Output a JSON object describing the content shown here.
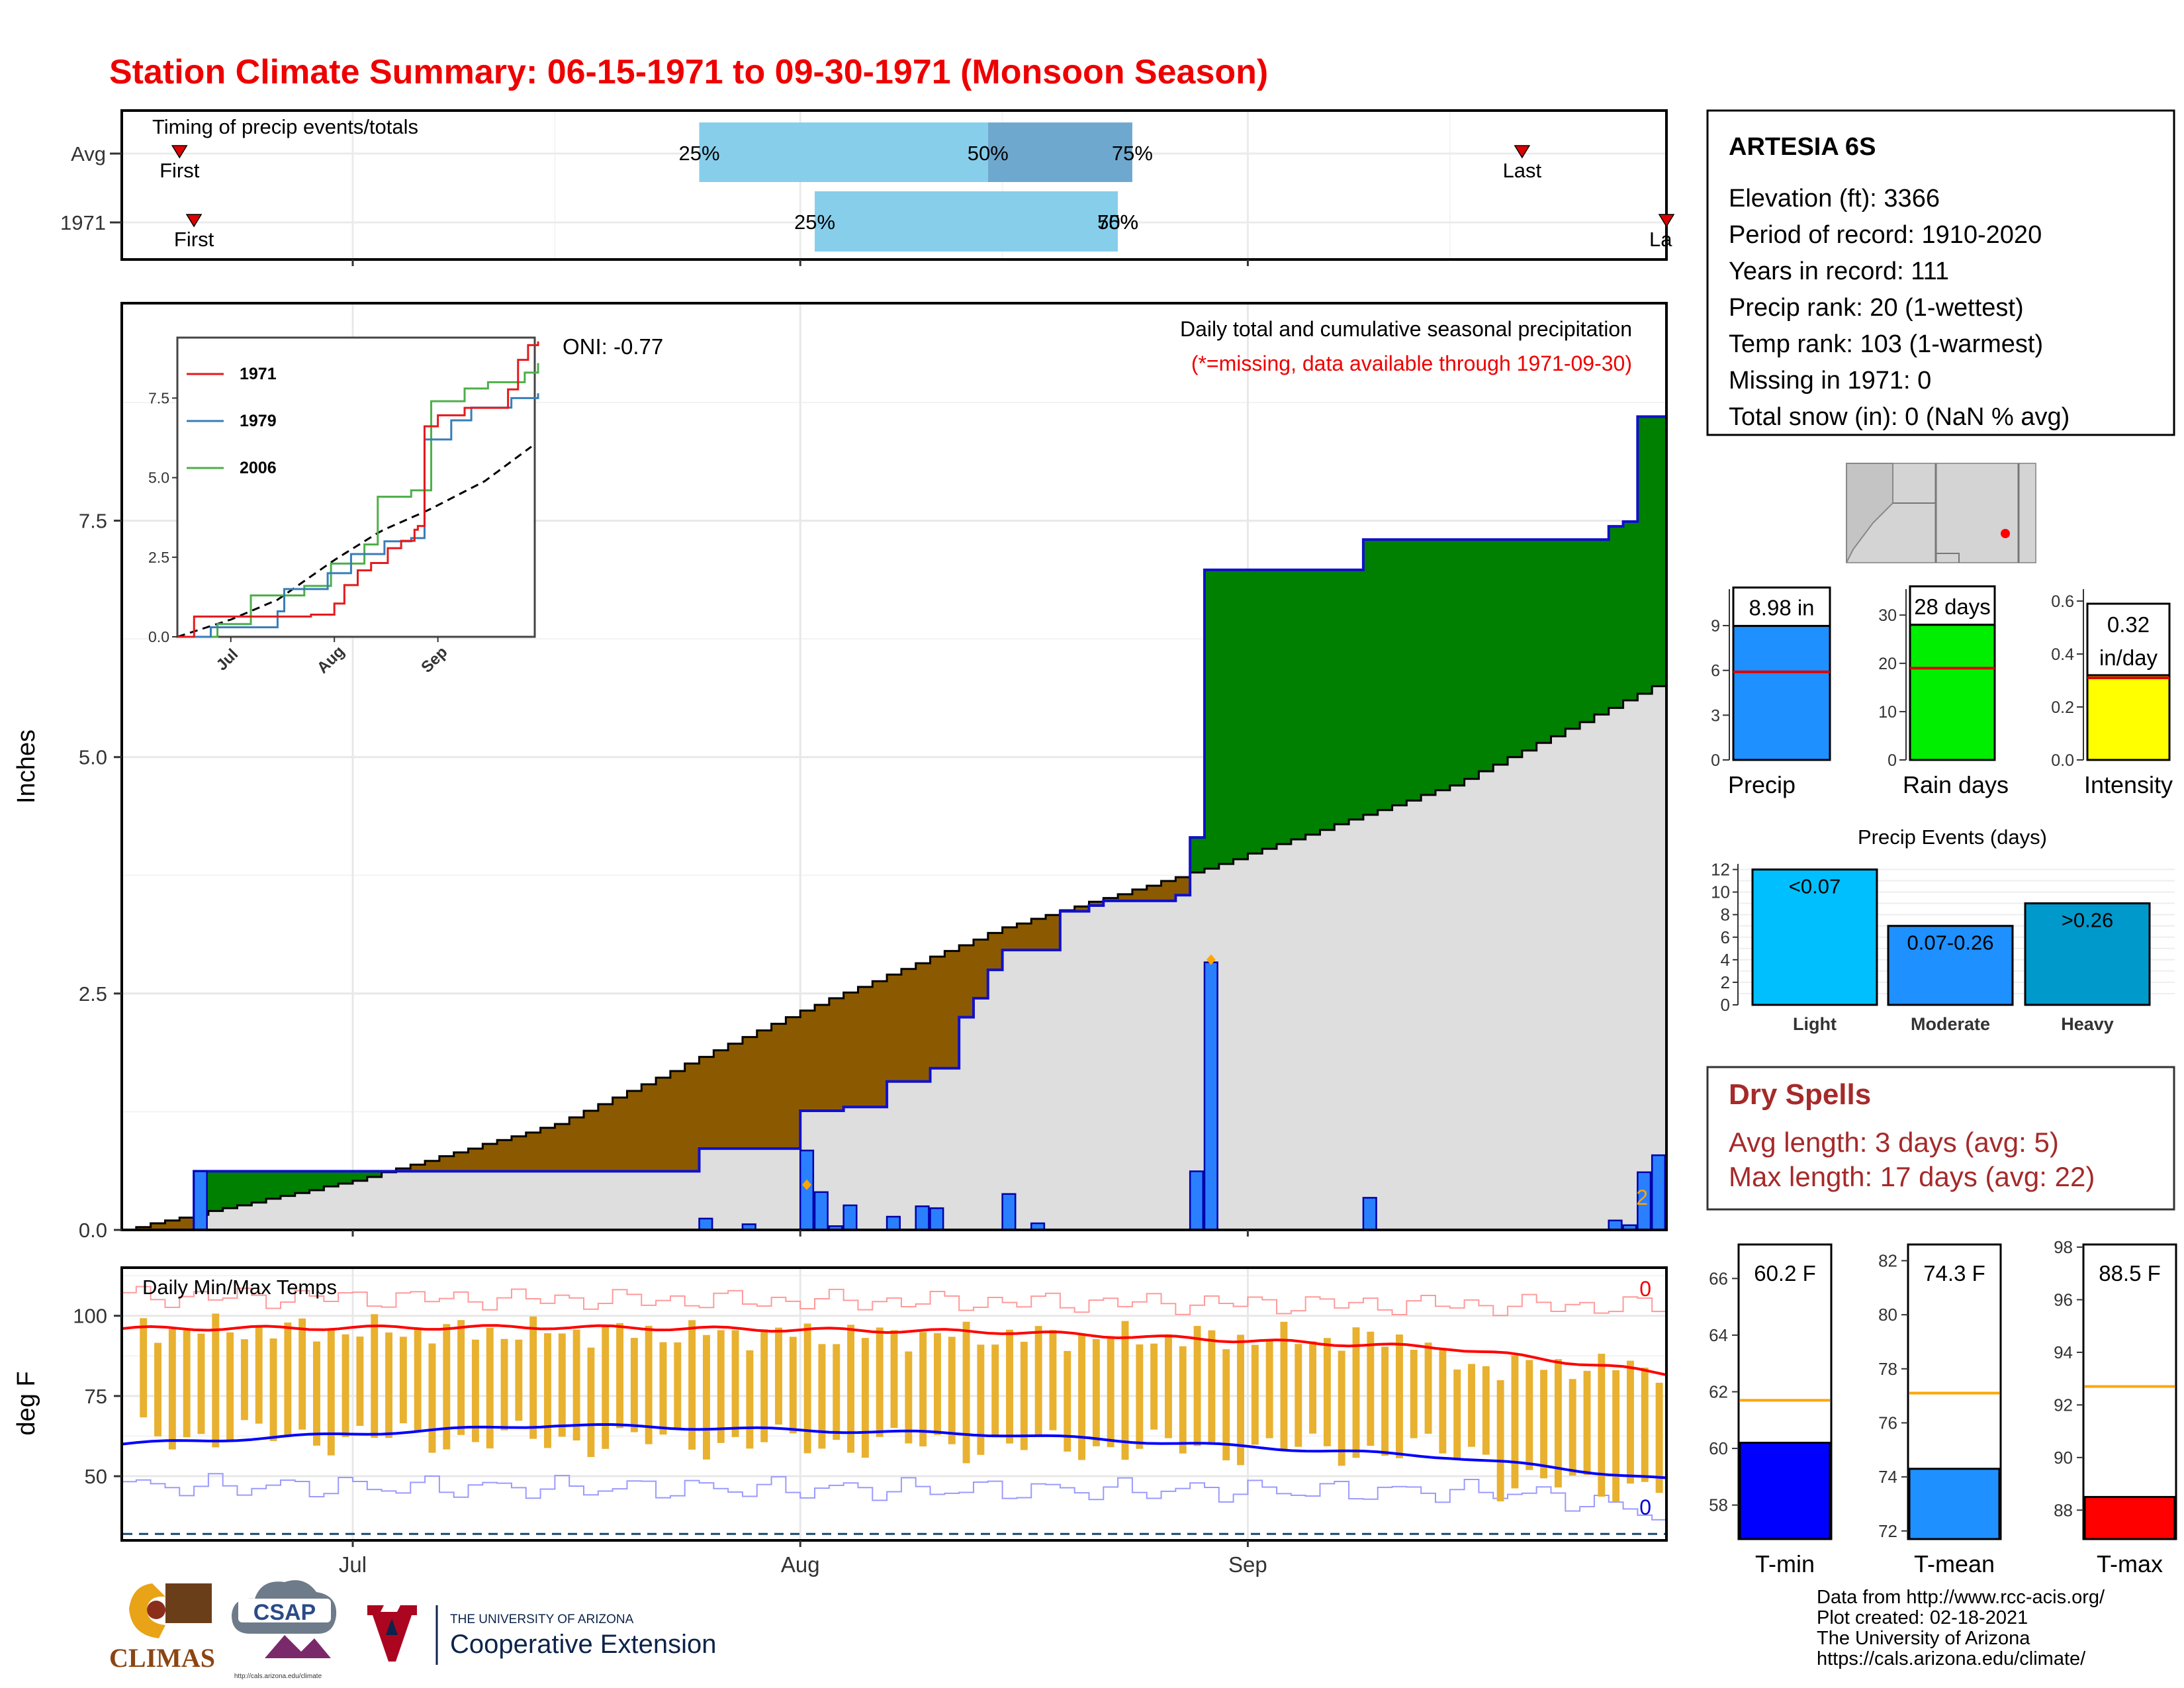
{
  "title": "Station Climate Summary: 06-15-1971 to 09-30-1971 (Monsoon Season)",
  "station": {
    "name": "ARTESIA 6S",
    "lines": [
      "Elevation (ft): 3366",
      "Period of record: 1910-2020",
      "Years in record: 111",
      "Precip rank: 20 (1-wettest)",
      "Temp rank: 103 (1-warmest)",
      "Missing in 1971: 0",
      "Total snow (in): 0 (NaN % avg)"
    ]
  },
  "timing": {
    "label": "Timing of precip events/totals",
    "rows": [
      "Avg",
      "1971"
    ],
    "first_label": "First",
    "last_label": "Last",
    "last_label_clipped": "La",
    "pct": [
      "25%",
      "50%",
      "75%"
    ],
    "avg": {
      "first": "1971-06-19",
      "q25": "1971-07-25",
      "q50": "1971-08-14",
      "q75": "1971-08-24",
      "last": "1971-09-20"
    },
    "y1971": {
      "first": "1971-06-20",
      "q25": "1971-08-02",
      "q50": "1971-08-23",
      "q75": "1971-08-23",
      "last": "1971-09-30"
    },
    "colors": {
      "light": "#87ceeb",
      "dark": "#6fa8cf",
      "marker": "#dd0000"
    }
  },
  "main": {
    "ylabel": "Inches",
    "legend_title": "Daily total and cumulative seasonal precipitation",
    "legend_sub": "(*=missing, data available through 1971-09-30)",
    "oni": "ONI: -0.77",
    "count_note": "2",
    "yticks": [
      "0.0",
      "2.5",
      "5.0",
      "7.5"
    ],
    "colors": {
      "surplus": "#008000",
      "deficit": "#8b5a00",
      "normal": "#dedede",
      "cum": "#1010cc",
      "bars": "#2a7fff"
    }
  },
  "inset": {
    "series": [
      {
        "name": "1971",
        "color": "#e41a1c"
      },
      {
        "name": "1979",
        "color": "#377eb8"
      },
      {
        "name": "2006",
        "color": "#4daf4a"
      }
    ],
    "yticks": [
      "0.0",
      "2.5",
      "5.0",
      "7.5"
    ],
    "xticks": [
      "Jul",
      "Aug",
      "Sep"
    ]
  },
  "temps": {
    "label": "Daily Min/Max Temps",
    "ylabel": "deg F",
    "yticks": [
      "50",
      "75",
      "100"
    ],
    "count_max": "0",
    "count_min": "0"
  },
  "xaxis": {
    "ticks": [
      "Jul",
      "Aug",
      "Sep"
    ]
  },
  "summary": {
    "precip": {
      "label": "Precip",
      "value": "8.98 in",
      "yticks": [
        "0",
        "3",
        "6",
        "9"
      ]
    },
    "rain_days": {
      "label": "Rain days",
      "value": "28 days",
      "yticks": [
        "0",
        "10",
        "20",
        "30"
      ]
    },
    "intensity": {
      "label": "Intensity",
      "value_l1": "0.32",
      "value_l2": "in/day",
      "yticks": [
        "0.0",
        "0.2",
        "0.4",
        "0.6"
      ]
    }
  },
  "events": {
    "title": "Precip Events (days)",
    "yticks": [
      "0",
      "2",
      "4",
      "6",
      "8",
      "10",
      "12"
    ],
    "bars": [
      {
        "label": "Light",
        "inner": "<0.07",
        "color": "#00bfff"
      },
      {
        "label": "Moderate",
        "inner": "0.07-0.26",
        "color": "#1e90ff"
      },
      {
        "label": "Heavy",
        "inner": ">0.26",
        "color": "#0099cc"
      }
    ]
  },
  "dry_spells": {
    "title": "Dry Spells",
    "avg": "Avg length: 3 days (avg: 5)",
    "max": "Max length: 17 days (avg: 22)"
  },
  "tsum": [
    {
      "label": "T-min",
      "value": "60.2 F",
      "yticks": [
        "58",
        "60",
        "62",
        "64",
        "66"
      ],
      "color": "#0000ff"
    },
    {
      "label": "T-mean",
      "value": "74.3 F",
      "yticks": [
        "72",
        "74",
        "76",
        "78",
        "80",
        "82"
      ],
      "color": "#1e90ff"
    },
    {
      "label": "T-max",
      "value": "88.5 F",
      "yticks": [
        "88",
        "90",
        "92",
        "94",
        "96",
        "98"
      ],
      "color": "#ff0000"
    }
  ],
  "credits": [
    "Data from http://www.rcc-acis.org/",
    "Plot created: 02-18-2021",
    "The University of Arizona",
    "https://cals.arizona.edu/climate/"
  ],
  "logos": {
    "climas": "CLIMAS",
    "csap": "CSAP",
    "csap_url": "http://cals.arizona.edu/climate",
    "ua_top": "THE UNIVERSITY OF ARIZONA",
    "ua_main": "Cooperative Extension"
  },
  "chart_data": [
    {
      "type": "area",
      "title": "Daily total and cumulative seasonal precipitation",
      "ylabel": "Inches",
      "x_range": [
        "1971-06-15",
        "1971-09-30"
      ],
      "ylim": [
        0,
        9.8
      ],
      "cumulative_1971_steps": [
        [
          "1971-06-15",
          0.0
        ],
        [
          "1971-06-20",
          0.62
        ],
        [
          "1971-07-25",
          0.86
        ],
        [
          "1971-08-01",
          1.26
        ],
        [
          "1971-08-04",
          1.3
        ],
        [
          "1971-08-07",
          1.57
        ],
        [
          "1971-08-10",
          1.71
        ],
        [
          "1971-08-12",
          2.25
        ],
        [
          "1971-08-13",
          2.45
        ],
        [
          "1971-08-14",
          2.75
        ],
        [
          "1971-08-15",
          2.96
        ],
        [
          "1971-08-19",
          3.37
        ],
        [
          "1971-08-21",
          3.43
        ],
        [
          "1971-08-22",
          3.48
        ],
        [
          "1971-08-27",
          3.54
        ],
        [
          "1971-08-28",
          4.15
        ],
        [
          "1971-08-29",
          6.98
        ],
        [
          "1971-09-09",
          7.3
        ],
        [
          "1971-09-26",
          7.44
        ],
        [
          "1971-09-27",
          7.49
        ],
        [
          "1971-09-28",
          8.6
        ],
        [
          "1971-09-30",
          8.98
        ]
      ],
      "normal_cumulative": [
        [
          "1971-06-15",
          0.0
        ],
        [
          "1971-07-01",
          0.52
        ],
        [
          "1971-07-15",
          1.12
        ],
        [
          "1971-08-01",
          2.32
        ],
        [
          "1971-08-15",
          3.2
        ],
        [
          "1971-08-29",
          3.82
        ],
        [
          "1971-09-15",
          4.7
        ],
        [
          "1971-09-30",
          5.82
        ]
      ],
      "daily_precip": [
        [
          "1971-06-20",
          0.62
        ],
        [
          "1971-07-25",
          0.12
        ],
        [
          "1971-07-28",
          0.06
        ],
        [
          "1971-08-01",
          0.84
        ],
        [
          "1971-08-02",
          0.4
        ],
        [
          "1971-08-03",
          0.04
        ],
        [
          "1971-08-04",
          0.26
        ],
        [
          "1971-08-07",
          0.14
        ],
        [
          "1971-08-09",
          0.25
        ],
        [
          "1971-08-10",
          0.23
        ],
        [
          "1971-08-15",
          0.38
        ],
        [
          "1971-08-17",
          0.07
        ],
        [
          "1971-08-28",
          0.62
        ],
        [
          "1971-08-29",
          2.83
        ],
        [
          "1971-09-09",
          0.34
        ],
        [
          "1971-09-26",
          0.1
        ],
        [
          "1971-09-27",
          0.05
        ],
        [
          "1971-09-28",
          0.61
        ],
        [
          "1971-09-29",
          0.79
        ]
      ]
    },
    {
      "type": "line",
      "title": "Daily Min/Max Temps",
      "ylabel": "deg F",
      "x_range": [
        "1971-06-15",
        "1971-09-30"
      ],
      "ylim": [
        30,
        115
      ],
      "avg_max_line": [
        [
          "1971-06-15",
          96
        ],
        [
          "1971-07-15",
          96.5
        ],
        [
          "1971-08-15",
          95
        ],
        [
          "1971-09-15",
          90
        ],
        [
          "1971-09-30",
          82
        ]
      ],
      "avg_min_line": [
        [
          "1971-06-15",
          60
        ],
        [
          "1971-07-15",
          66
        ],
        [
          "1971-08-15",
          63
        ],
        [
          "1971-09-15",
          56
        ],
        [
          "1971-09-30",
          49
        ]
      ],
      "record_high_range": [
        108,
        102
      ],
      "record_low_range": [
        48,
        36
      ]
    },
    {
      "type": "bar",
      "title": "Precip Events (days)",
      "categories": [
        "Light",
        "Moderate",
        "Heavy"
      ],
      "values": [
        12,
        7,
        9
      ],
      "ylim": [
        0,
        12.5
      ]
    },
    {
      "type": "bar",
      "categories": [
        "Precip",
        "Rain days",
        "Intensity"
      ],
      "values": [
        8.98,
        28,
        0.32
      ],
      "averages": [
        5.9,
        19,
        0.31
      ],
      "ylims": [
        [
          0,
          11
        ],
        [
          0,
          34
        ],
        [
          0,
          0.62
        ]
      ]
    },
    {
      "type": "bar",
      "categories": [
        "T-min",
        "T-mean",
        "T-max"
      ],
      "values": [
        60.2,
        74.3,
        88.5
      ],
      "averages": [
        61.7,
        77.1,
        92.7
      ],
      "ylims": [
        [
          56.8,
          67.2
        ],
        [
          71.7,
          82.6
        ],
        [
          86.9,
          98.1
        ]
      ]
    }
  ]
}
